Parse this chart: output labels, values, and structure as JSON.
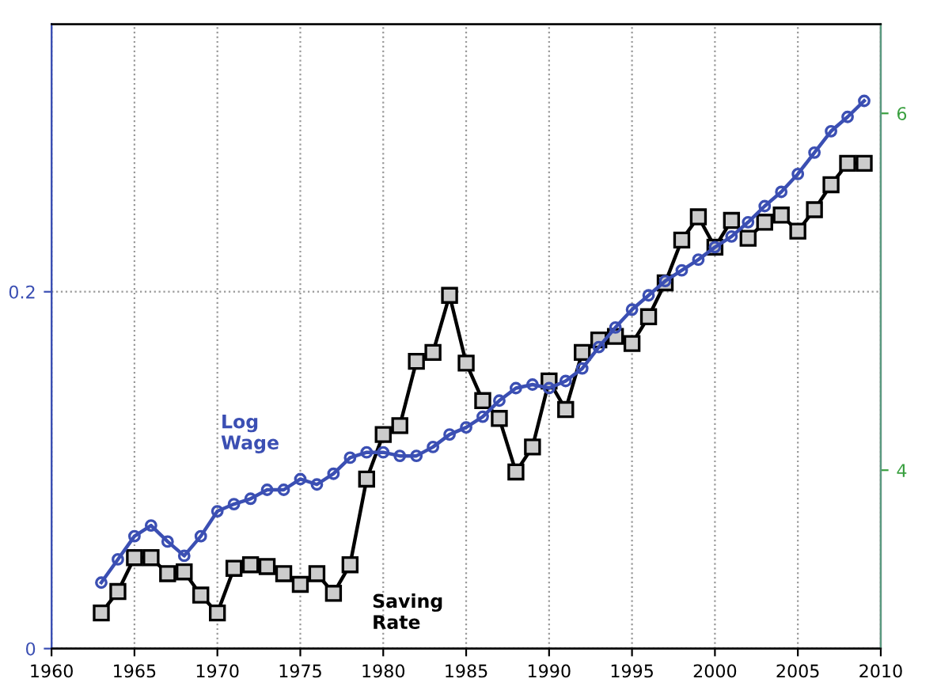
{
  "chart_data": {
    "type": "line",
    "x": [
      1963,
      1964,
      1965,
      1966,
      1967,
      1968,
      1969,
      1970,
      1971,
      1972,
      1973,
      1974,
      1975,
      1976,
      1977,
      1978,
      1979,
      1980,
      1981,
      1982,
      1983,
      1984,
      1985,
      1986,
      1987,
      1988,
      1989,
      1990,
      1991,
      1992,
      1993,
      1994,
      1995,
      1996,
      1997,
      1998,
      1999,
      2000,
      2001,
      2002,
      2003,
      2004,
      2005,
      2006,
      2007,
      2008,
      2009
    ],
    "series": [
      {
        "name": "Log\nWage",
        "color": "#3b4fb3",
        "marker": "circle",
        "axis": "y2",
        "values": [
          3.37,
          3.5,
          3.63,
          3.69,
          3.6,
          3.52,
          3.63,
          3.77,
          3.81,
          3.84,
          3.89,
          3.89,
          3.95,
          3.92,
          3.98,
          4.07,
          4.1,
          4.1,
          4.08,
          4.08,
          4.13,
          4.2,
          4.24,
          4.3,
          4.39,
          4.46,
          4.48,
          4.46,
          4.5,
          4.57,
          4.69,
          4.8,
          4.9,
          4.98,
          5.06,
          5.12,
          5.18,
          5.25,
          5.31,
          5.39,
          5.48,
          5.56,
          5.66,
          5.78,
          5.9,
          5.98,
          6.07
        ]
      },
      {
        "name": "Saving\nRate",
        "color": "#000000",
        "marker": "square",
        "axis": "y",
        "values": [
          0.02,
          0.032,
          0.051,
          0.051,
          0.042,
          0.043,
          0.03,
          0.02,
          0.045,
          0.047,
          0.046,
          0.042,
          0.036,
          0.042,
          0.031,
          0.047,
          0.095,
          0.12,
          0.125,
          0.161,
          0.166,
          0.198,
          0.16,
          0.139,
          0.129,
          0.099,
          0.113,
          0.15,
          0.134,
          0.166,
          0.173,
          0.175,
          0.171,
          0.186,
          0.205,
          0.229,
          0.242,
          0.225,
          0.24,
          0.23,
          0.239,
          0.243,
          0.234,
          0.246,
          0.26,
          0.272,
          0.272
        ]
      }
    ],
    "xlim": [
      1960,
      2010
    ],
    "xticks": [
      1960,
      1965,
      1970,
      1975,
      1980,
      1985,
      1990,
      1995,
      2000,
      2005,
      2010
    ],
    "ylim": [
      0,
      0.35
    ],
    "yticks": [
      0,
      0.2
    ],
    "y2lim": [
      3,
      6.5
    ],
    "y2ticks": [
      4,
      6
    ],
    "grid": true,
    "legend": false
  }
}
